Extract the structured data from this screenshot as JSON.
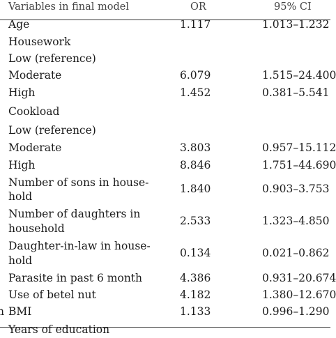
{
  "header": {
    "variable": "Variables in final model",
    "or": "OR",
    "ci": "95% CI"
  },
  "rows": [
    {
      "label": "Age",
      "or": "1.117",
      "ci": "1.013–1.232"
    },
    {
      "label": "Housework",
      "or": "",
      "ci": ""
    },
    {
      "label": "Low (reference)",
      "or": "",
      "ci": ""
    },
    {
      "label": "Moderate",
      "or": "6.079",
      "ci": "1.515–24.400"
    },
    {
      "label": "High",
      "or": "1.452",
      "ci": "0.381–5.541"
    },
    {
      "label": "Cookload",
      "or": "",
      "ci": ""
    },
    {
      "label": "Low (reference)",
      "or": "",
      "ci": ""
    },
    {
      "label": "Moderate",
      "or": "3.803",
      "ci": "0.957–15.112"
    },
    {
      "label": "High",
      "or": "8.846",
      "ci": "1.751–44.690"
    },
    {
      "label": "Number of sons in house-",
      "label2": "hold",
      "or": "1.840",
      "ci": "0.903–3.753"
    },
    {
      "label": "Number of daughters in",
      "label2": "household",
      "or": "2.533",
      "ci": "1.323–4.850"
    },
    {
      "label": "Daughter-in-law in house-",
      "label2": "hold",
      "or": "0.134",
      "ci": "0.021–0.862"
    },
    {
      "label": "Parasite in past 6 month",
      "or": "4.386",
      "ci": "0.931–20.674"
    },
    {
      "label": "Use of betel nut",
      "or": "4.182",
      "ci": "1.380–12.670"
    },
    {
      "label": "BMI",
      "prefix": "n",
      "or": "1.133",
      "ci": "0.996–1.290"
    },
    {
      "label": "Years of education",
      "or": "",
      "ci": ""
    }
  ]
}
